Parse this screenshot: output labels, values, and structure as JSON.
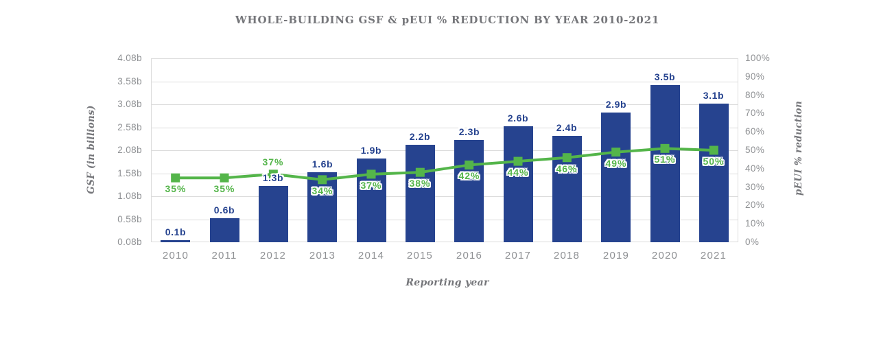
{
  "chart_data": {
    "type": "bar",
    "combo": "bar+line dual axis",
    "title": "WHOLE-BUILDING GSF & pEUI % REDUCTION BY YEAR 2010-2021",
    "xlabel": "Reporting year",
    "categories": [
      "2010",
      "2011",
      "2012",
      "2013",
      "2014",
      "2015",
      "2016",
      "2017",
      "2018",
      "2019",
      "2020",
      "2021"
    ],
    "series": [
      {
        "name": "GSF",
        "type": "bar",
        "axis": "left",
        "unit": "billions GSF",
        "color": "#26438F",
        "values": [
          0.1,
          0.6,
          1.3,
          1.6,
          1.9,
          2.2,
          2.3,
          2.6,
          2.4,
          2.9,
          3.5,
          3.1
        ],
        "labels": [
          "0.1b",
          "0.6b",
          "1.3b",
          "1.6b",
          "1.9b",
          "2.2b",
          "2.3b",
          "2.6b",
          "2.4b",
          "2.9b",
          "3.5b",
          "3.1b"
        ]
      },
      {
        "name": "pEUI % reduction",
        "type": "line",
        "axis": "right",
        "marker": "square",
        "color": "#54B54A",
        "values": [
          35,
          35,
          37,
          34,
          37,
          38,
          42,
          44,
          46,
          49,
          51,
          50
        ],
        "labels": [
          "35%",
          "35%",
          "37%",
          "34%",
          "37%",
          "38%",
          "42%",
          "44%",
          "46%",
          "49%",
          "51%",
          "50%"
        ],
        "label_side": [
          "below",
          "below",
          "above",
          "below",
          "below",
          "below",
          "below",
          "below",
          "below",
          "below",
          "below",
          "below"
        ]
      }
    ],
    "left_axis": {
      "label": "GSF (in billions)",
      "min": 0.08,
      "max": 4.08,
      "ticks": [
        "4.08b",
        "3.58b",
        "3.08b",
        "2.58b",
        "2.08b",
        "1.58b",
        "1.08b",
        "0.58b",
        "0.08b"
      ]
    },
    "right_axis": {
      "label": "pEUI % reduction",
      "min": 0,
      "max": 100,
      "ticks": [
        "100%",
        "90%",
        "80%",
        "70%",
        "60%",
        "50%",
        "40%",
        "30%",
        "20%",
        "10%",
        "0%"
      ]
    },
    "grid": "horizontal",
    "legend": "none",
    "colors": {
      "bar": "#26438F",
      "line": "#54B54A",
      "tick_text": "#8E9093",
      "title_text": "#75767A",
      "gridline": "#DBDBDB"
    }
  }
}
